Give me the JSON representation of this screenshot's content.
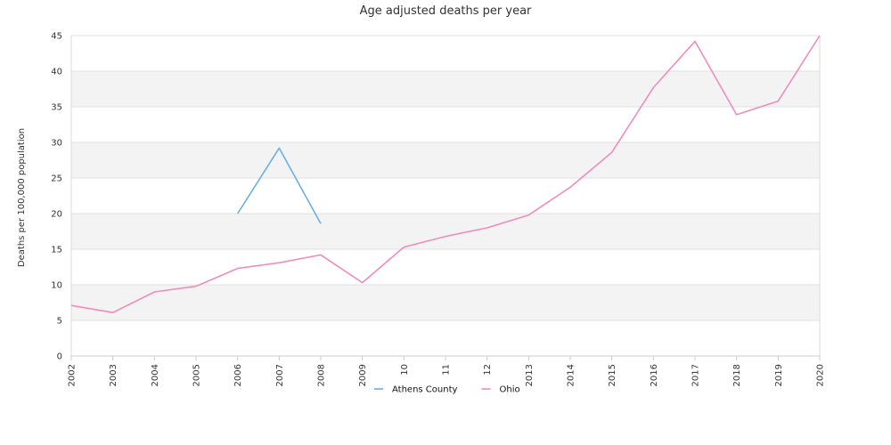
{
  "chart_data": {
    "type": "line",
    "title": "Age adjusted deaths per year",
    "xlabel": "",
    "ylabel": "Deaths per 100,000 population",
    "categories": [
      "2002",
      "2003",
      "2004",
      "2005",
      "2006",
      "2007",
      "2008",
      "2009",
      "10",
      "11",
      "12",
      "2013",
      "2014",
      "2015",
      "2016",
      "2017",
      "2018",
      "2019",
      "2020"
    ],
    "ylim": [
      0,
      45
    ],
    "yticks": [
      0,
      5,
      10,
      15,
      20,
      25,
      30,
      35,
      40,
      45
    ],
    "grid": "alternating horizontal bands",
    "legend_position": "bottom-center",
    "series": [
      {
        "name": "Athens County",
        "color": "#6aaee6",
        "values": [
          null,
          null,
          null,
          null,
          20.0,
          29.2,
          18.6,
          null,
          null,
          null,
          null,
          null,
          null,
          null,
          null,
          null,
          null,
          null,
          null
        ]
      },
      {
        "name": "Ohio",
        "color": "#f08cbd",
        "values": [
          7.1,
          6.1,
          9.0,
          9.8,
          12.3,
          13.1,
          14.2,
          10.3,
          15.3,
          16.8,
          18.0,
          19.8,
          23.7,
          28.6,
          37.7,
          44.2,
          33.9,
          35.8,
          45.0
        ]
      }
    ]
  }
}
